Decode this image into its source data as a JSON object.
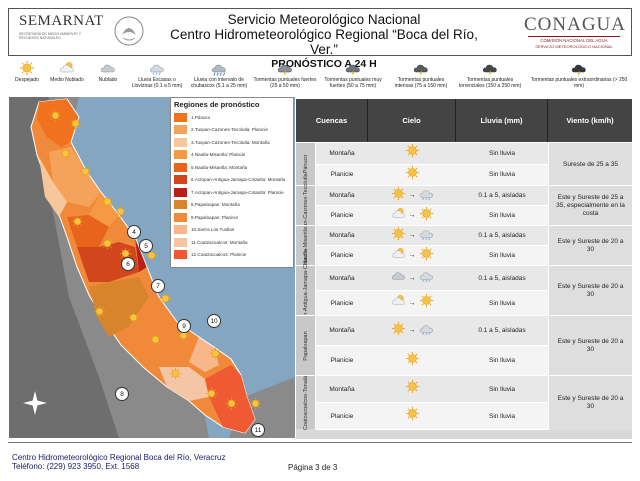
{
  "header": {
    "logo_left": "SEMARNAT",
    "logo_left_sub": "SECRETARÍA DE MEDIO AMBIENTE Y RECURSOS NATURALES",
    "title1": "Servicio Meteorológico Nacional",
    "title2": "Centro Hidrometeorológico Regional “Boca del Río, Ver.”",
    "title3": "PRONÓSTICO A 24 H",
    "logo_right": "CONAGUA",
    "logo_right_sub1": "COMISIÓN NACIONAL DEL AGUA",
    "logo_right_sub2": "SERVICIO METEOROLÓGICO NACIONAL"
  },
  "legend": [
    {
      "label": "Despejado",
      "icon": "sun-icon"
    },
    {
      "label": "Medio Nublado",
      "icon": "partly-cloudy-icon"
    },
    {
      "label": "Nublado",
      "icon": "cloudy-icon"
    },
    {
      "label": "Lluvia Escasas o Lloviznas (0.1 a 5 mm)",
      "icon": "drizzle-icon"
    },
    {
      "label": "Lluvia con intervalo de chubascos (5.1 a 25 mm)",
      "icon": "showers-icon"
    },
    {
      "label": "Tormentas puntuales fuertes (25 a 50 mm)",
      "icon": "storm-strong-icon"
    },
    {
      "label": "Tormentas puntuales muy fuertes (50 a 75 mm)",
      "icon": "storm-very-strong-icon"
    },
    {
      "label": "Tormentas puntuales intensas (75 a 150 mm)",
      "icon": "storm-intense-icon"
    },
    {
      "label": "Tormentas puntuales torrenciales (150 a 250 mm)",
      "icon": "storm-torrential-icon"
    },
    {
      "label": "Tormentas puntuales extraordinarias (> 250 mm)",
      "icon": "storm-extraordinary-icon"
    }
  ],
  "map": {
    "regions_title": "Regiones de pronóstico",
    "regions": [
      {
        "label": "1.Pánuco",
        "color": "#f0721e"
      },
      {
        "label": "2.Tuxpan-Cazones-Tecolutla: Planicie",
        "color": "#f5a25a"
      },
      {
        "label": "3.Tuxpan-Cazones-Tecolutla: Montaña",
        "color": "#f6c79a"
      },
      {
        "label": "4.Nautla-Misantla: Planicie",
        "color": "#f59a42"
      },
      {
        "label": "5.Nautla-Misantla: Montaña",
        "color": "#e8641c"
      },
      {
        "label": "6.Actopan-Antigua-Jamapa-Cotaxtla: Montaña",
        "color": "#d2461e"
      },
      {
        "label": "7.Actopan-Antigua-Jamapa-Cotaxtla: Planicie",
        "color": "#b8201a"
      },
      {
        "label": "8.Papaloapan: Montaña",
        "color": "#d8842c"
      },
      {
        "label": "9.Papaloapan: Planicie",
        "color": "#f08a3a"
      },
      {
        "label": "10.Sierra Los Tuxtlas",
        "color": "#f7b78a"
      },
      {
        "label": "11.Coatzacoalcos: Montaña",
        "color": "#f4c6a6"
      },
      {
        "label": "12.Coatzacoalcos: Planicie",
        "color": "#ef5a32"
      }
    ],
    "markers": [
      "4",
      "5",
      "6",
      "7",
      "8",
      "9",
      "10",
      "11"
    ]
  },
  "table": {
    "headers": {
      "cuencas": "Cuencas",
      "cielo": "Cielo",
      "lluvia": "Lluvia (mm)",
      "viento": "Viento (km/h)"
    },
    "basins": [
      {
        "name": "Pánuco",
        "rows": [
          {
            "label": "Montaña",
            "sky": [
              "sun-icon"
            ],
            "rain": "Sin lluvia"
          },
          {
            "label": "Planicie",
            "sky": [
              "sun-icon"
            ],
            "rain": "Sin lluvia"
          }
        ],
        "wind": "Sureste de 25 a 35"
      },
      {
        "name": "Tuxpan-Cazones-Tecolutla",
        "rows": [
          {
            "label": "Montaña",
            "sky": [
              "sun-icon",
              "drizzle-icon"
            ],
            "rain": "0.1 a 5, aisladas"
          },
          {
            "label": "Planicie",
            "sky": [
              "partly-cloudy-icon",
              "sun-icon"
            ],
            "rain": "Sin lluvia"
          }
        ],
        "wind": "Este y Sureste de 25 a 35, especialmente en la costa"
      },
      {
        "name": "Nautla-Misantla",
        "rows": [
          {
            "label": "Montaña",
            "sky": [
              "sun-icon",
              "drizzle-icon"
            ],
            "rain": "0.1 a 5, aisladas"
          },
          {
            "label": "Planicie",
            "sky": [
              "partly-cloudy-icon",
              "sun-icon"
            ],
            "rain": "Sin lluvia"
          }
        ],
        "wind": "Este y Sureste de 20 a 30"
      },
      {
        "name": "Actopan-Antigua-Jamapa-Cotaxtla",
        "rows": [
          {
            "label": "Montaña",
            "sky": [
              "cloudy-icon",
              "drizzle-icon"
            ],
            "rain": "0.1 a 5, aisladas"
          },
          {
            "label": "Planicie",
            "sky": [
              "partly-cloudy-icon",
              "sun-icon"
            ],
            "rain": "Sin lluvia"
          }
        ],
        "wind": "Este y Sureste de 20 a 30"
      },
      {
        "name": "Papaloapan",
        "rows": [
          {
            "label": "Montaña",
            "sky": [
              "sun-icon",
              "drizzle-icon"
            ],
            "rain": "0.1 a 5, aisladas"
          },
          {
            "label": "Planicie",
            "sky": [
              "sun-icon"
            ],
            "rain": "Sin lluvia"
          }
        ],
        "wind": "Este y Sureste de 20 a 30"
      },
      {
        "name": "Coatzacoalcos-Tonalá",
        "rows": [
          {
            "label": "Montaña",
            "sky": [
              "sun-icon"
            ],
            "rain": "Sin lluvia"
          },
          {
            "label": "Planicie",
            "sky": [
              "sun-icon"
            ],
            "rain": "Sin lluvia"
          }
        ],
        "wind": "Este y Sureste de 20 a 30"
      }
    ]
  },
  "footer": {
    "line1": "Centro Hidrometeorológico Regional Boca del Río, Veracruz",
    "line2": "Teléfono: (229) 923 3950, Ext. 1568",
    "page": "Página 3 de 3"
  }
}
